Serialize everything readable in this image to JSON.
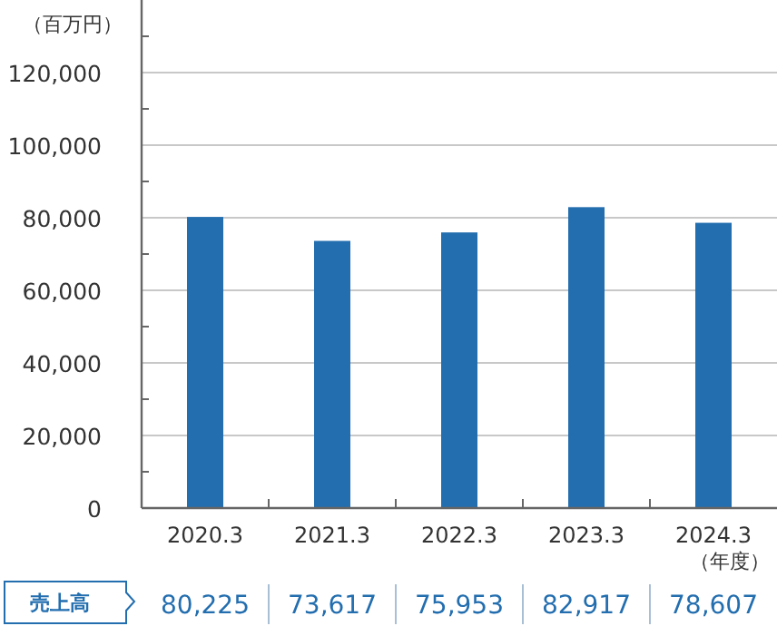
{
  "chart_data": {
    "type": "bar",
    "ylabel": "（百万円）",
    "xlabel": "（年度）",
    "categories": [
      "2020.3",
      "2021.3",
      "2022.3",
      "2023.3",
      "2024.3"
    ],
    "series": [
      {
        "name": "売上高",
        "color": "#236eaf",
        "values": [
          80225,
          73617,
          75953,
          82917,
          78607
        ],
        "value_labels": [
          "80,225",
          "73,617",
          "75,953",
          "82,917",
          "78,607"
        ]
      }
    ],
    "ylim": [
      0,
      140000
    ],
    "yticks": [
      0,
      {
        "value": 10000,
        "label": null
      },
      {
        "value": 20000,
        "label": "20,000"
      },
      {
        "value": 30000,
        "label": null
      },
      {
        "value": 40000,
        "label": "40,000"
      },
      {
        "value": 50000,
        "label": null
      },
      {
        "value": 60000,
        "label": "60,000"
      },
      {
        "value": 70000,
        "label": null
      },
      {
        "value": 80000,
        "label": "80,000"
      },
      {
        "value": 90000,
        "label": null
      },
      {
        "value": 100000,
        "label": "100,000"
      },
      {
        "value": 110000,
        "label": null
      },
      {
        "value": 120000,
        "label": "120,000"
      },
      {
        "value": 130000,
        "label": null
      }
    ],
    "grid": "y"
  }
}
